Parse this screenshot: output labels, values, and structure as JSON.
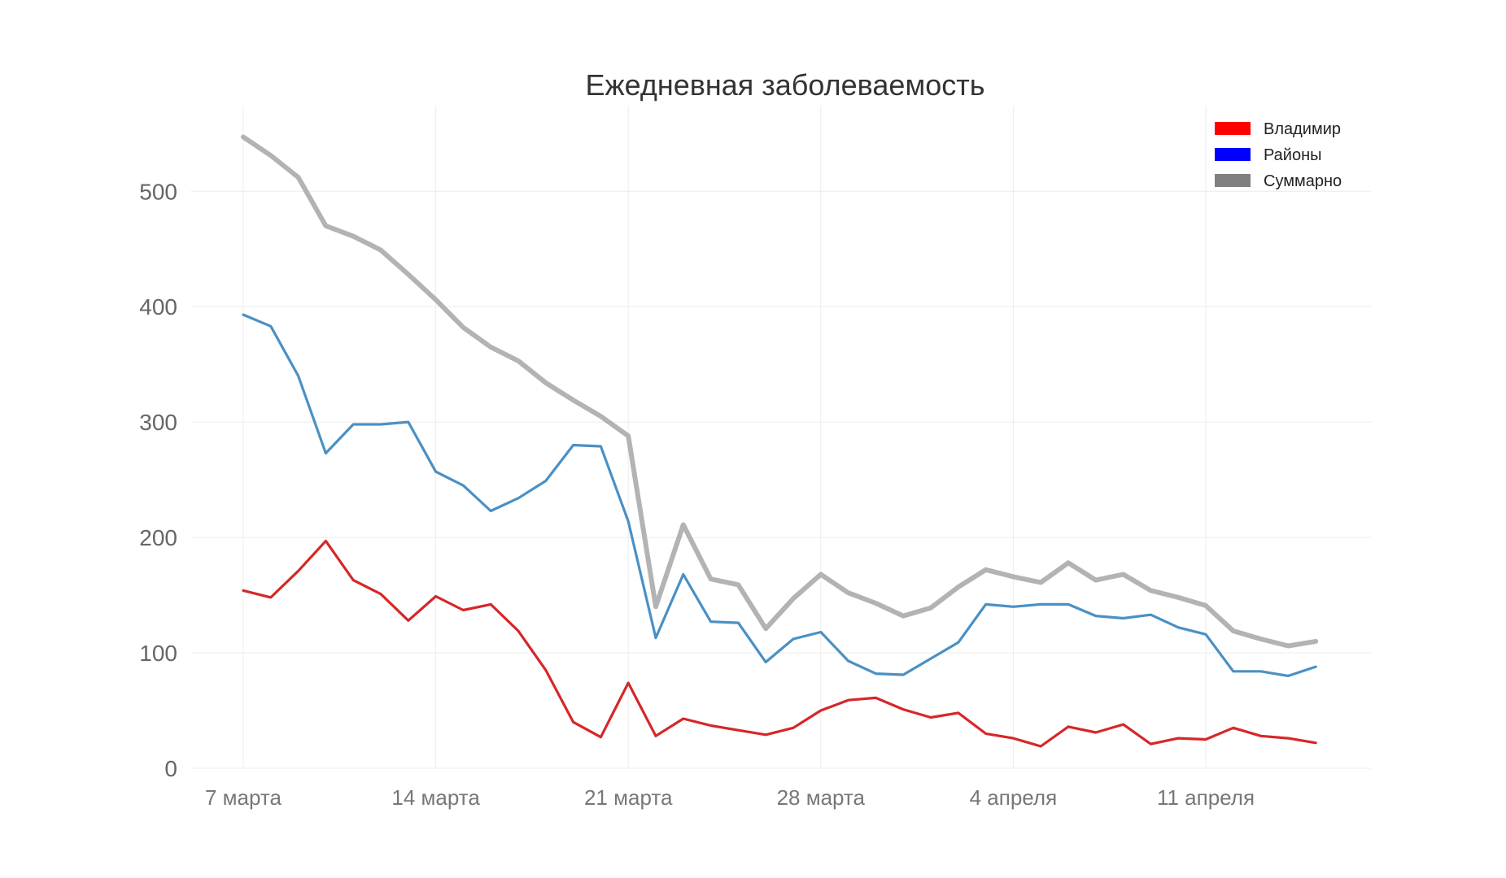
{
  "chart_data": {
    "type": "line",
    "title": "Ежедневная заболеваемость",
    "xlabel": "",
    "ylabel": "",
    "ylim": [
      0,
      580
    ],
    "yticks": [
      0,
      100,
      200,
      300,
      400,
      500
    ],
    "grid": true,
    "legend_position": "top-right",
    "x_start_label": "7 марта",
    "xticks": [
      {
        "index": 0,
        "label": "7 марта"
      },
      {
        "index": 7,
        "label": "14 марта"
      },
      {
        "index": 14,
        "label": "21 марта"
      },
      {
        "index": 21,
        "label": "28 марта"
      },
      {
        "index": 28,
        "label": "4 апреля"
      },
      {
        "index": 35,
        "label": "11 апреля"
      }
    ],
    "series": [
      {
        "name": "Суммарно",
        "color": "#b3b3b3",
        "legend_color": "#808080",
        "values": [
          547,
          531,
          512,
          470,
          461,
          449,
          428,
          406,
          382,
          365,
          353,
          334,
          319,
          305,
          288,
          140,
          211,
          164,
          159,
          121,
          147,
          168,
          152,
          143,
          132,
          139,
          157,
          172,
          166,
          161,
          178,
          163,
          168,
          154,
          148,
          141,
          119,
          112,
          106,
          110
        ]
      },
      {
        "name": "Районы",
        "color": "#4a90c4",
        "legend_color": "#0000ff",
        "values": [
          393,
          383,
          340,
          273,
          298,
          298,
          300,
          257,
          245,
          223,
          234,
          249,
          280,
          279,
          214,
          113,
          168,
          127,
          126,
          92,
          112,
          118,
          93,
          82,
          81,
          95,
          109,
          142,
          140,
          142,
          142,
          132,
          130,
          133,
          122,
          116,
          84,
          84,
          80,
          88
        ]
      },
      {
        "name": "Владимир",
        "color": "#d62728",
        "legend_color": "#ff0000",
        "values": [
          154,
          148,
          171,
          197,
          163,
          151,
          128,
          149,
          137,
          142,
          119,
          85,
          40,
          27,
          74,
          28,
          43,
          37,
          33,
          29,
          35,
          50,
          59,
          61,
          51,
          44,
          48,
          30,
          26,
          19,
          36,
          31,
          38,
          21,
          26,
          25,
          35,
          28,
          26,
          22
        ]
      }
    ],
    "legend_order": [
      "Владимир",
      "Районы",
      "Суммарно"
    ]
  }
}
